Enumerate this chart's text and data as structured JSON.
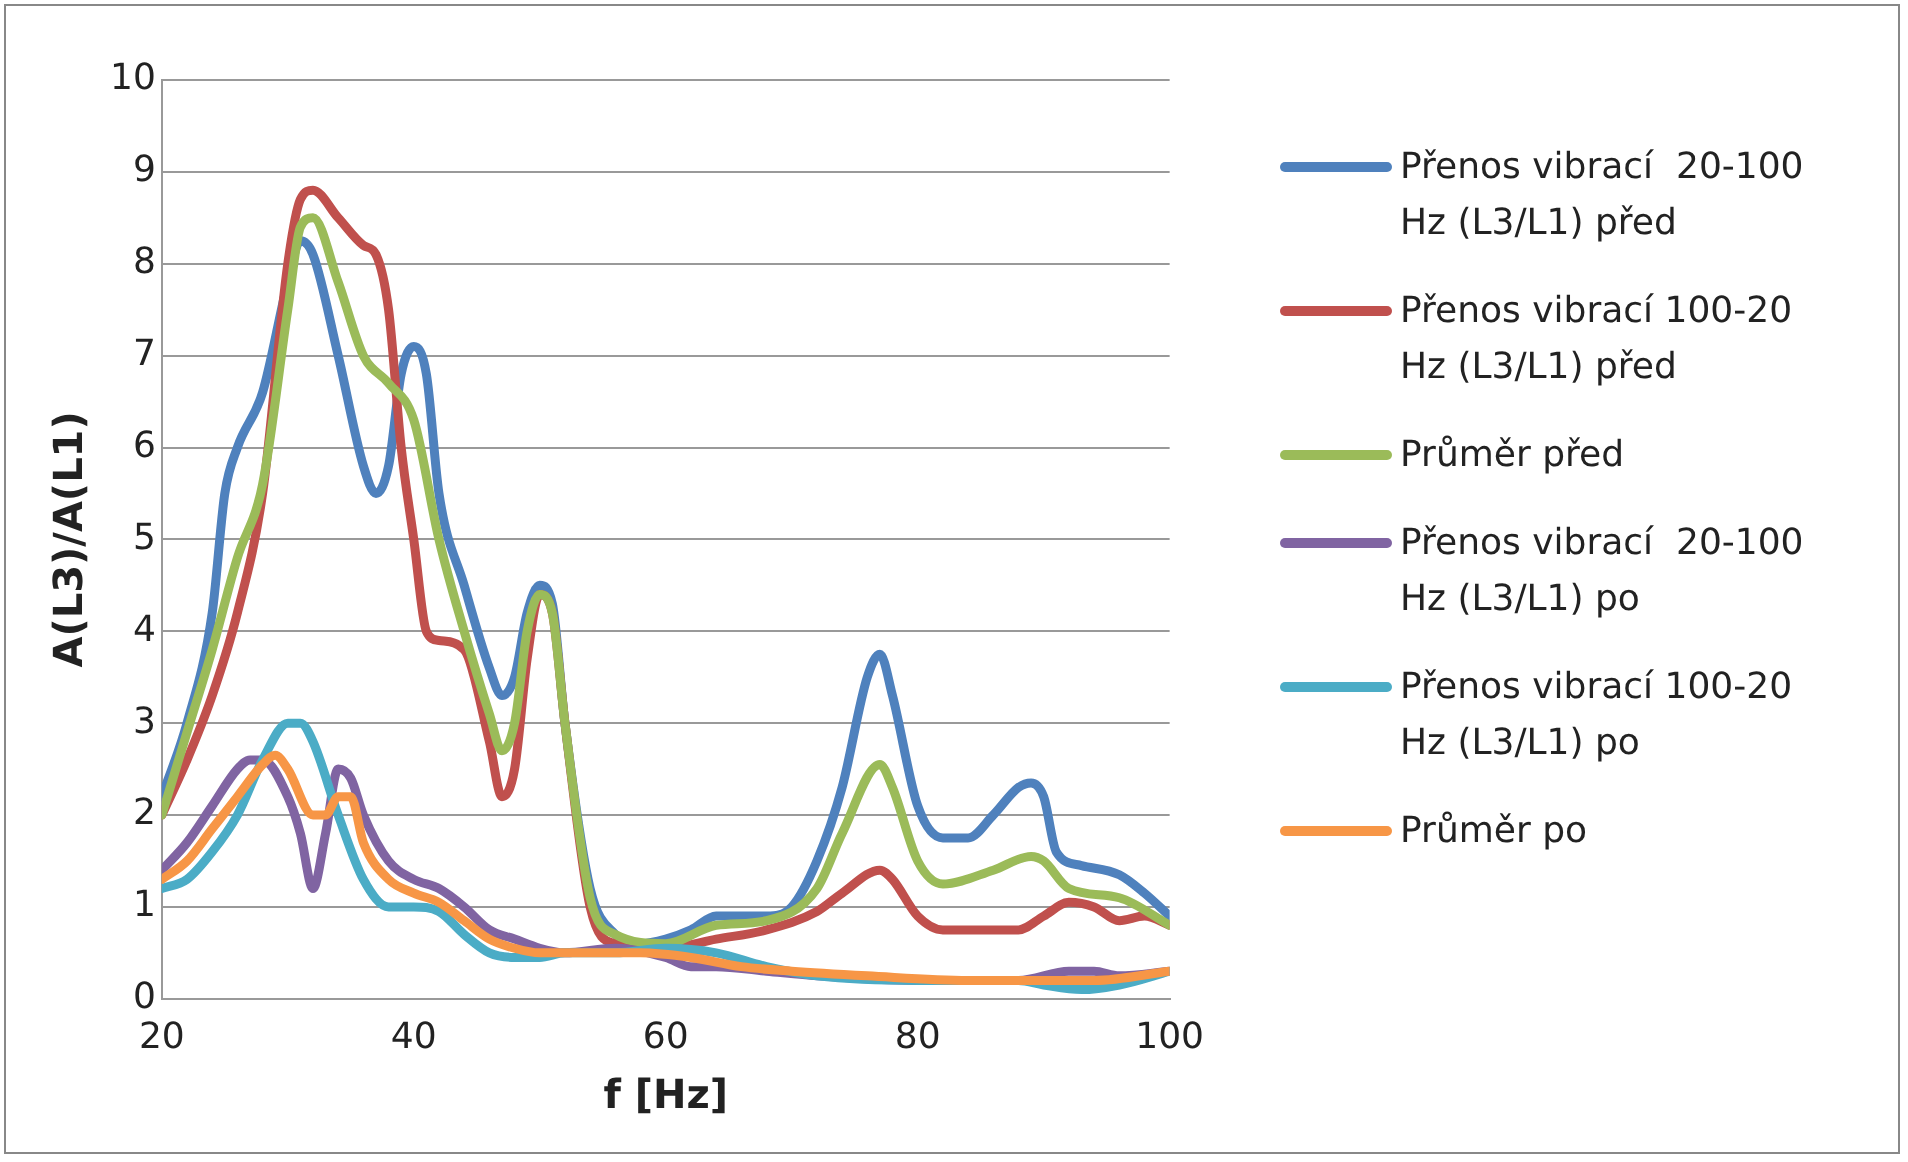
{
  "chart_data": {
    "type": "line",
    "xlabel": "f [Hz]",
    "ylabel": "A(L3)/A(L1)",
    "xlim": [
      20,
      100
    ],
    "xticks": [
      20,
      40,
      60,
      80,
      100
    ],
    "ylim": [
      0,
      10
    ],
    "yticks": [
      0,
      1,
      2,
      3,
      4,
      5,
      6,
      7,
      8,
      9,
      10
    ],
    "grid": "y",
    "legend": "right",
    "marker": "none",
    "line_style": "solid",
    "series": [
      {
        "name": "Přenos vibrací  20-100 Hz (L3/L1) před",
        "color": "#4f81bd",
        "x": [
          20,
          22,
          24,
          25,
          26,
          28,
          30,
          31,
          32,
          34,
          36,
          37,
          38,
          39,
          40,
          41,
          42,
          44,
          46,
          47,
          48,
          49,
          50,
          51,
          52,
          54,
          56,
          58,
          60,
          62,
          64,
          66,
          68,
          70,
          72,
          74,
          76,
          77,
          78,
          80,
          82,
          84,
          86,
          88,
          89,
          90,
          91,
          93,
          96,
          98,
          100
        ],
        "values": [
          2.2,
          3,
          4.2,
          5.5,
          6,
          6.6,
          7.8,
          8.25,
          8.1,
          7,
          5.8,
          5.5,
          5.8,
          6.8,
          7.1,
          6.8,
          5.5,
          4.5,
          3.6,
          3.3,
          3.5,
          4.2,
          4.5,
          4.3,
          3,
          1.2,
          0.7,
          0.6,
          0.65,
          0.75,
          0.9,
          0.9,
          0.9,
          1,
          1.5,
          2.3,
          3.5,
          3.75,
          3.3,
          2.1,
          1.75,
          1.75,
          2,
          2.3,
          2.35,
          2.2,
          1.6,
          1.45,
          1.35,
          1.15,
          0.9
        ]
      },
      {
        "name": "Přenos vibrací 100-20 Hz (L3/L1) před",
        "color": "#c0504d",
        "x": [
          20,
          22,
          24,
          26,
          28,
          30,
          31,
          32,
          34,
          36,
          37,
          38,
          39,
          40,
          41,
          42,
          44,
          46,
          47,
          48,
          49,
          50,
          51,
          52,
          54,
          56,
          60,
          64,
          68,
          72,
          74,
          77,
          78,
          80,
          82,
          86,
          88,
          90,
          92,
          94,
          96,
          98,
          100
        ],
        "values": [
          2,
          2.6,
          3.3,
          4.2,
          5.5,
          8,
          8.7,
          8.8,
          8.5,
          8.2,
          8.1,
          7.5,
          6,
          5,
          4,
          3.9,
          3.8,
          2.8,
          2.2,
          2.5,
          3.7,
          4.4,
          4.2,
          3,
          1,
          0.6,
          0.55,
          0.65,
          0.75,
          0.95,
          1.15,
          1.4,
          1.3,
          0.9,
          0.75,
          0.75,
          0.75,
          0.9,
          1.05,
          1,
          0.85,
          0.9,
          0.8
        ]
      },
      {
        "name": "Průměr před",
        "color": "#9bbb59",
        "x": [
          20,
          22,
          24,
          26,
          28,
          30,
          31,
          32,
          34,
          36,
          38,
          40,
          42,
          44,
          46,
          47,
          48,
          49,
          50,
          51,
          52,
          54,
          56,
          60,
          64,
          68,
          72,
          74,
          77,
          78,
          80,
          82,
          86,
          89,
          90,
          92,
          96,
          100
        ],
        "values": [
          2,
          2.9,
          3.8,
          4.8,
          5.6,
          7.5,
          8.4,
          8.5,
          7.8,
          7,
          6.7,
          6.3,
          5,
          4,
          3.1,
          2.7,
          3,
          4,
          4.4,
          4.2,
          3,
          1.1,
          0.7,
          0.6,
          0.8,
          0.85,
          1.2,
          1.8,
          2.55,
          2.3,
          1.5,
          1.25,
          1.4,
          1.55,
          1.5,
          1.2,
          1.1,
          0.8
        ]
      },
      {
        "name": "Přenos vibrací  20-100 Hz (L3/L1) po",
        "color": "#8064a2",
        "x": [
          20,
          22,
          24,
          26,
          27,
          28,
          30,
          31,
          32,
          33,
          34,
          35,
          36,
          38,
          40,
          42,
          44,
          46,
          48,
          50,
          52,
          56,
          60,
          62,
          64,
          68,
          72,
          80,
          88,
          92,
          94,
          96,
          100
        ],
        "values": [
          1.4,
          1.7,
          2.1,
          2.5,
          2.6,
          2.6,
          2.2,
          1.8,
          1.2,
          1.8,
          2.5,
          2.4,
          2,
          1.5,
          1.3,
          1.2,
          1,
          0.75,
          0.65,
          0.55,
          0.5,
          0.55,
          0.45,
          0.35,
          0.35,
          0.3,
          0.25,
          0.2,
          0.2,
          0.3,
          0.3,
          0.25,
          0.3
        ]
      },
      {
        "name": "Přenos vibrací 100-20 Hz (L3/L1) po",
        "color": "#4bacc6",
        "x": [
          20,
          22,
          24,
          26,
          28,
          30,
          31,
          32,
          34,
          36,
          38,
          40,
          42,
          44,
          46,
          48,
          50,
          52,
          56,
          60,
          64,
          68,
          72,
          80,
          88,
          90,
          93,
          96,
          100
        ],
        "values": [
          1.2,
          1.3,
          1.6,
          2,
          2.6,
          3,
          3,
          2.8,
          2,
          1.3,
          1,
          1,
          0.95,
          0.7,
          0.5,
          0.45,
          0.45,
          0.5,
          0.5,
          0.55,
          0.5,
          0.35,
          0.25,
          0.2,
          0.2,
          0.15,
          0.1,
          0.15,
          0.3
        ]
      },
      {
        "name": "Průměr po",
        "color": "#f79646",
        "x": [
          20,
          22,
          24,
          26,
          28,
          29,
          30,
          32,
          33,
          34,
          35,
          36,
          38,
          40,
          42,
          44,
          46,
          48,
          50,
          54,
          58,
          62,
          66,
          70,
          76,
          84,
          90,
          94,
          100
        ],
        "values": [
          1.3,
          1.5,
          1.85,
          2.2,
          2.55,
          2.65,
          2.5,
          2,
          2,
          2.2,
          2.2,
          1.7,
          1.3,
          1.15,
          1.05,
          0.85,
          0.65,
          0.55,
          0.5,
          0.5,
          0.5,
          0.45,
          0.35,
          0.3,
          0.25,
          0.2,
          0.2,
          0.2,
          0.3
        ]
      }
    ]
  }
}
